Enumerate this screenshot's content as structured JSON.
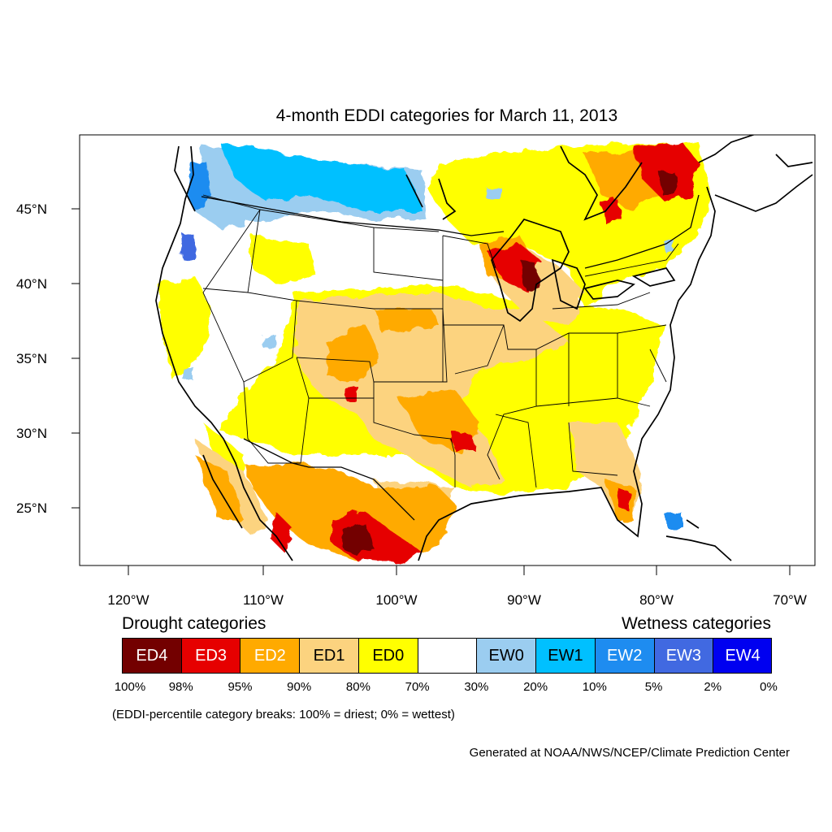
{
  "title": "4-month EDDI categories for March 11, 2013",
  "axes": {
    "lat_ticks": [
      "45°N",
      "40°N",
      "35°N",
      "30°N",
      "25°N"
    ],
    "lon_ticks": [
      "120°W",
      "110°W",
      "100°W",
      "90°W",
      "80°W",
      "70°W"
    ]
  },
  "legend": {
    "drought_header": "Drought categories",
    "wetness_header": "Wetness categories",
    "categories": [
      {
        "label": "ED4",
        "color": "#730000",
        "text_color": "#ffffff"
      },
      {
        "label": "ED3",
        "color": "#e60000",
        "text_color": "#ffffff"
      },
      {
        "label": "ED2",
        "color": "#ffaa00",
        "text_color": "#ffffff"
      },
      {
        "label": "ED1",
        "color": "#fcd37f",
        "text_color": "#000000"
      },
      {
        "label": "ED0",
        "color": "#ffff00",
        "text_color": "#000000"
      },
      {
        "label": "",
        "color": "#ffffff",
        "text_color": "#000000"
      },
      {
        "label": "EW0",
        "color": "#9bcdf0",
        "text_color": "#000000"
      },
      {
        "label": "EW1",
        "color": "#00c0ff",
        "text_color": "#000000"
      },
      {
        "label": "EW2",
        "color": "#1e8cf0",
        "text_color": "#ffffff"
      },
      {
        "label": "EW3",
        "color": "#4169e1",
        "text_color": "#ffffff"
      },
      {
        "label": "EW4",
        "color": "#0000f0",
        "text_color": "#ffffff"
      }
    ],
    "breaks": [
      "100%",
      "98%",
      "95%",
      "90%",
      "80%",
      "70%",
      "30%",
      "20%",
      "10%",
      "5%",
      "2%",
      "0%"
    ]
  },
  "note": "(EDDI-percentile category breaks: 100% = driest; 0% = wettest)",
  "credit": "Generated at NOAA/NWS/NCEP/Climate Prediction Center"
}
